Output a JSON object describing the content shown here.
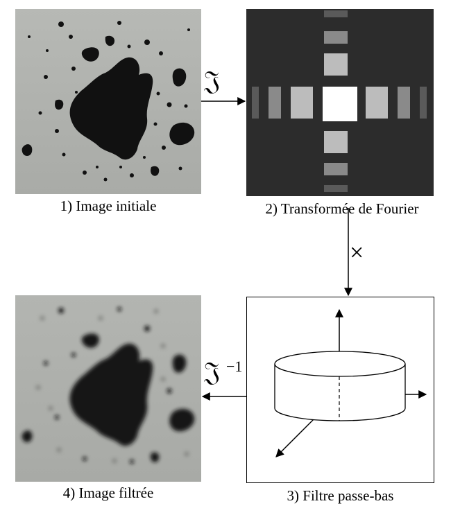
{
  "labels": {
    "initial": "1) Image initiale",
    "fourier": "2) Transformée de Fourier",
    "filter": "3) Filtre passe-bas",
    "filtered": "4) Image filtrée"
  },
  "operators": {
    "forward": "𝔍",
    "multiply": "×",
    "inverse": "𝔍",
    "inverse_exponent": "−1"
  },
  "colors": {
    "image_background": "#b4b6b2",
    "blot": "#101010",
    "fourier_background": "#2c2c2c",
    "fourier_center": "#ffffff"
  }
}
